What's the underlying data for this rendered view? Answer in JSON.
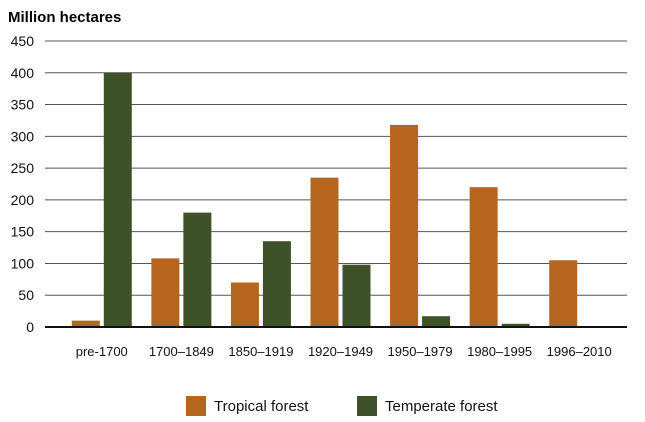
{
  "chart_data": {
    "type": "bar",
    "ylabel": "Million hectares",
    "xlabel": "",
    "ylim": [
      0,
      450
    ],
    "yticks": [
      0,
      50,
      100,
      150,
      200,
      250,
      300,
      350,
      400,
      450
    ],
    "grid": true,
    "legend_position": "bottom",
    "categories": [
      "pre-1700",
      "1700–1849",
      "1850–1919",
      "1920–1949",
      "1950–1979",
      "1980–1995",
      "1996–2010"
    ],
    "series": [
      {
        "name": "Tropical forest",
        "color": "#b5651d",
        "values": [
          10,
          108,
          70,
          235,
          318,
          220,
          105
        ]
      },
      {
        "name": "Temperate forest",
        "color": "#3d5229",
        "values": [
          400,
          180,
          135,
          98,
          17,
          5,
          null
        ]
      }
    ]
  }
}
